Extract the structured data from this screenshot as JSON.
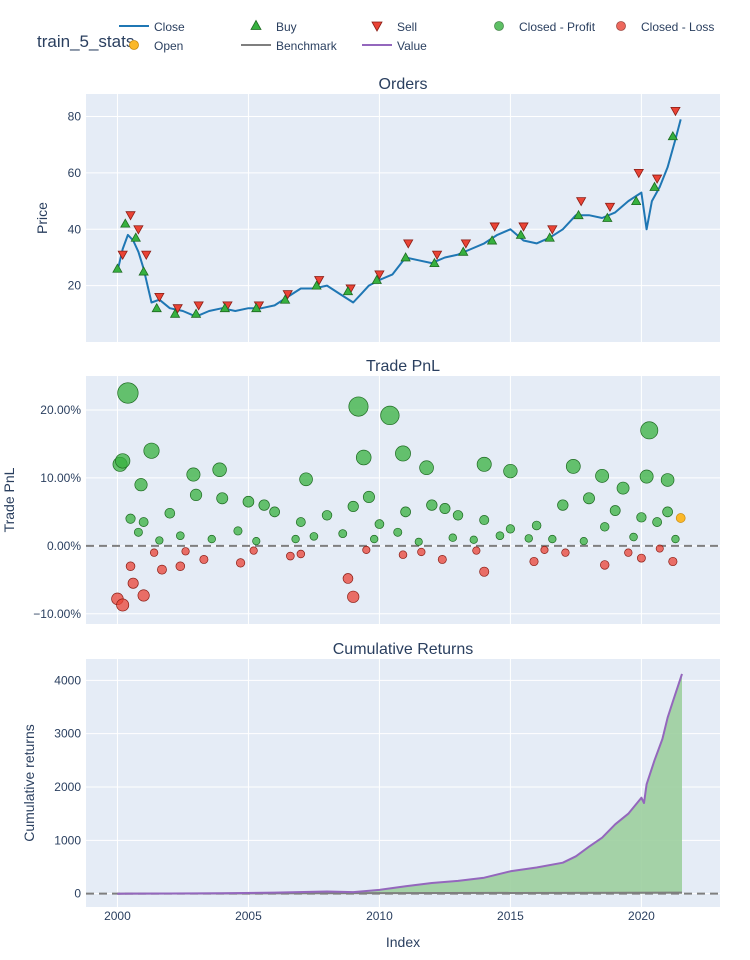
{
  "title": "train_5_stats",
  "legend": {
    "items": [
      {
        "key": "close",
        "label": "Close",
        "symbol": "line",
        "color": "#1f77b4"
      },
      {
        "key": "open",
        "label": "Open",
        "symbol": "circle",
        "color": "#fbb829"
      },
      {
        "key": "buy",
        "label": "Buy",
        "symbol": "triangle-up",
        "color": "#37b13f"
      },
      {
        "key": "benchmark",
        "label": "Benchmark",
        "symbol": "line",
        "color": "#7f7f7f"
      },
      {
        "key": "sell",
        "label": "Sell",
        "symbol": "triangle-down",
        "color": "#ea4335"
      },
      {
        "key": "value",
        "label": "Value",
        "symbol": "line",
        "color": "#9467bd"
      },
      {
        "key": "closed_profit",
        "label": "Closed - Profit",
        "symbol": "circle",
        "color": "#37b13f"
      },
      {
        "key": "closed_loss",
        "label": "Closed - Loss",
        "symbol": "circle",
        "color": "#ea4335"
      }
    ]
  },
  "colors": {
    "plot_bg": "#e5ecf6",
    "grid": "#ffffff",
    "close": "#1f77b4",
    "buy": "#37b13f",
    "sell": "#ea4335",
    "profit": "#37b13f",
    "loss": "#ea4335",
    "open": "#fbb829",
    "value": "#9467bd",
    "benchmark": "#7f7f7f",
    "area_fill": "#9ccf9e",
    "zero_line": "#7f7f7f"
  },
  "chart_data": [
    {
      "type": "line",
      "title": "Orders",
      "xlabel": "",
      "ylabel": "Price",
      "xlim": [
        1998.8,
        2023.0
      ],
      "ylim": [
        0,
        88
      ],
      "yticks": [
        20,
        40,
        60,
        80
      ],
      "grid": true,
      "series": [
        {
          "name": "Close",
          "x": [
            2000.0,
            2000.2,
            2000.4,
            2000.6,
            2000.8,
            2001.0,
            2001.3,
            2001.6,
            2002.0,
            2002.5,
            2003.0,
            2003.5,
            2004.0,
            2004.5,
            2005.0,
            2005.5,
            2006.0,
            2006.5,
            2007.0,
            2007.5,
            2008.0,
            2008.5,
            2009.0,
            2009.3,
            2009.6,
            2010.0,
            2010.5,
            2011.0,
            2011.5,
            2012.0,
            2012.5,
            2013.0,
            2013.5,
            2014.0,
            2014.5,
            2015.0,
            2015.5,
            2016.0,
            2016.5,
            2017.0,
            2017.5,
            2018.0,
            2018.5,
            2019.0,
            2019.5,
            2020.0,
            2020.2,
            2020.4,
            2020.7,
            2021.0,
            2021.3,
            2021.5
          ],
          "values": [
            25,
            33,
            38,
            36,
            32,
            26,
            14,
            15,
            12,
            11,
            9,
            11,
            12,
            11,
            12,
            12,
            13,
            16,
            19,
            19,
            20,
            17,
            14,
            17,
            20,
            22,
            24,
            30,
            29,
            28,
            30,
            31,
            33,
            35,
            38,
            40,
            36,
            35,
            37,
            40,
            45,
            45,
            44,
            46,
            50,
            53,
            40,
            50,
            55,
            62,
            72,
            79
          ]
        },
        {
          "name": "Buy",
          "x": [
            2000.0,
            2000.3,
            2000.7,
            2001.0,
            2001.5,
            2002.2,
            2003.0,
            2004.1,
            2005.3,
            2006.4,
            2007.6,
            2008.8,
            2009.9,
            2011.0,
            2012.1,
            2013.2,
            2014.3,
            2015.4,
            2016.5,
            2017.6,
            2018.7,
            2019.8,
            2020.5,
            2021.2
          ],
          "values": [
            26,
            42,
            37,
            25,
            12,
            10,
            10,
            12,
            12,
            15,
            20,
            18,
            22,
            30,
            28,
            32,
            36,
            38,
            37,
            45,
            44,
            50,
            55,
            73
          ]
        },
        {
          "name": "Sell",
          "x": [
            2000.2,
            2000.5,
            2000.8,
            2001.1,
            2001.6,
            2002.3,
            2003.1,
            2004.2,
            2005.4,
            2006.5,
            2007.7,
            2008.9,
            2010.0,
            2011.1,
            2012.2,
            2013.3,
            2014.4,
            2015.5,
            2016.6,
            2017.7,
            2018.8,
            2019.9,
            2020.6,
            2021.3
          ],
          "values": [
            31,
            45,
            40,
            31,
            16,
            12,
            13,
            13,
            13,
            17,
            22,
            19,
            24,
            35,
            31,
            35,
            41,
            41,
            40,
            50,
            48,
            60,
            58,
            82
          ]
        }
      ]
    },
    {
      "type": "scatter",
      "title": "Trade PnL",
      "xlabel": "",
      "ylabel": "Trade PnL",
      "xlim": [
        1998.8,
        2023.0
      ],
      "ylim": [
        -11.5,
        25
      ],
      "yticks": [
        -10,
        0,
        10,
        20
      ],
      "ytick_labels": [
        "−10.00%",
        "0.00%",
        "10.00%",
        "20.00%"
      ],
      "grid": true,
      "series": [
        {
          "name": "Closed - Profit",
          "x": [
            2000.1,
            2000.2,
            2000.4,
            2000.9,
            2001.3,
            2002.9,
            2003.9,
            2005.6,
            2007.2,
            2009.2,
            2009.4,
            2009.6,
            2010.4,
            2010.9,
            2011.8,
            2012.5,
            2014.0,
            2015.0,
            2017.4,
            2018.5,
            2019.3,
            2020.2,
            2020.3,
            2021.0,
            2000.5,
            2001.0,
            2002.0,
            2003.0,
            2004.0,
            2005.0,
            2006.0,
            2007.0,
            2008.0,
            2009.0,
            2010.0,
            2011.0,
            2012.0,
            2013.0,
            2014.0,
            2015.0,
            2016.0,
            2017.0,
            2018.0,
            2019.0,
            2020.0,
            2021.0,
            2000.8,
            2002.4,
            2004.6,
            2006.8,
            2008.6,
            2010.7,
            2012.8,
            2014.6,
            2016.6,
            2018.6,
            2020.6,
            2001.6,
            2003.6,
            2005.3,
            2007.5,
            2009.8,
            2011.5,
            2013.6,
            2015.7,
            2017.8,
            2019.7,
            2021.3
          ],
          "values": [
            12.0,
            12.5,
            22.5,
            9.0,
            14.0,
            10.5,
            11.2,
            6.0,
            9.8,
            20.5,
            13.0,
            7.2,
            19.2,
            13.6,
            11.5,
            5.5,
            12.0,
            11.0,
            11.7,
            10.3,
            8.5,
            10.2,
            17.0,
            9.7,
            4.0,
            3.5,
            4.8,
            7.5,
            7.0,
            6.5,
            5.0,
            3.5,
            4.5,
            5.8,
            3.2,
            5.0,
            6.0,
            4.5,
            3.8,
            2.5,
            3.0,
            6.0,
            7.0,
            5.2,
            4.2,
            5.0,
            2.0,
            1.5,
            2.2,
            1.0,
            1.8,
            2.0,
            1.2,
            1.5,
            1.0,
            2.8,
            3.5,
            0.8,
            1.0,
            0.7,
            1.4,
            1.0,
            0.6,
            0.9,
            1.1,
            0.7,
            1.3,
            1.0
          ]
        },
        {
          "name": "Closed - Loss",
          "x": [
            2000.0,
            2000.2,
            2000.5,
            2001.0,
            2001.7,
            2002.4,
            2003.3,
            2004.7,
            2006.6,
            2008.8,
            2009.0,
            2010.9,
            2012.4,
            2014.0,
            2015.9,
            2017.1,
            2018.6,
            2020.0,
            2021.2,
            2000.6,
            2001.4,
            2002.6,
            2005.2,
            2007.0,
            2009.5,
            2011.6,
            2013.7,
            2016.3,
            2019.5,
            2020.7
          ],
          "values": [
            -7.8,
            -8.7,
            -3.0,
            -7.3,
            -3.5,
            -3.0,
            -2.0,
            -2.5,
            -1.5,
            -4.8,
            -7.5,
            -1.3,
            -2.0,
            -3.8,
            -2.3,
            -1.0,
            -2.8,
            -1.8,
            -2.3,
            -5.5,
            -1.0,
            -0.8,
            -0.7,
            -1.2,
            -0.6,
            -0.9,
            -0.7,
            -0.6,
            -1.0,
            -0.4
          ]
        },
        {
          "name": "Open",
          "x": [
            2021.5
          ],
          "values": [
            4.1
          ]
        }
      ]
    },
    {
      "type": "area",
      "title": "Cumulative Returns",
      "xlabel": "Index",
      "ylabel": "Cumulative returns",
      "xlim": [
        1998.8,
        2023.0
      ],
      "ylim": [
        -250,
        4400
      ],
      "yticks": [
        0,
        1000,
        2000,
        3000,
        4000
      ],
      "xticks": [
        2000,
        2005,
        2010,
        2015,
        2020
      ],
      "grid": true,
      "series": [
        {
          "name": "Value",
          "x": [
            2000.0,
            2002.0,
            2004.0,
            2006.0,
            2008.0,
            2009.0,
            2010.0,
            2011.0,
            2012.0,
            2013.0,
            2014.0,
            2015.0,
            2016.0,
            2017.0,
            2017.5,
            2018.0,
            2018.5,
            2019.0,
            2019.5,
            2020.0,
            2020.1,
            2020.2,
            2020.5,
            2020.8,
            2021.0,
            2021.2,
            2021.4,
            2021.55
          ],
          "values": [
            0,
            3,
            8,
            20,
            40,
            30,
            70,
            140,
            200,
            240,
            300,
            420,
            490,
            580,
            700,
            880,
            1050,
            1300,
            1500,
            1800,
            1700,
            2050,
            2500,
            2900,
            3300,
            3600,
            3900,
            4120
          ]
        },
        {
          "name": "Benchmark",
          "x": [
            2000.0,
            2021.55
          ],
          "values": [
            0,
            20
          ]
        }
      ]
    }
  ]
}
